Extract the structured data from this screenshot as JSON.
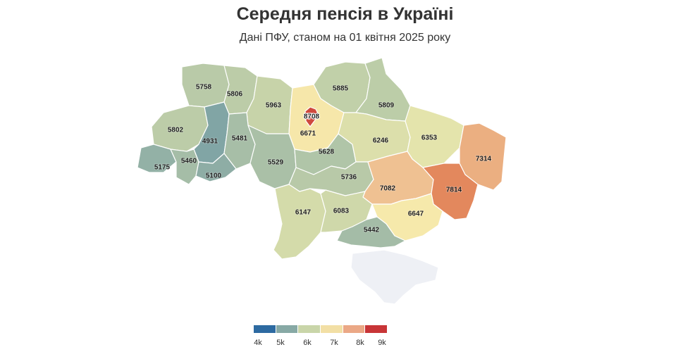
{
  "title": "Середня пенсія в Україні",
  "subtitle": "Дані ПФУ, станом на 01 квітня 2025 року",
  "map": {
    "regions": [
      {
        "id": "volyn",
        "value": 5758
      },
      {
        "id": "rivne",
        "value": 5806
      },
      {
        "id": "zhytomyr",
        "value": 5963
      },
      {
        "id": "kyiv-oblast",
        "value": 6671
      },
      {
        "id": "kyiv-city",
        "value": 8708
      },
      {
        "id": "chernihiv",
        "value": 5885
      },
      {
        "id": "sumy",
        "value": 5809
      },
      {
        "id": "lviv",
        "value": 5802
      },
      {
        "id": "ternopil",
        "value": 4931
      },
      {
        "id": "khmelnytskyi",
        "value": 5481
      },
      {
        "id": "zakarpattia",
        "value": 5175
      },
      {
        "id": "ivano-frankivsk",
        "value": 5460
      },
      {
        "id": "chernivtsi",
        "value": 5100
      },
      {
        "id": "vinnytsia",
        "value": 5529
      },
      {
        "id": "cherkasy",
        "value": 5628
      },
      {
        "id": "poltava",
        "value": 6246
      },
      {
        "id": "kharkiv",
        "value": 6353
      },
      {
        "id": "luhansk",
        "value": 7314
      },
      {
        "id": "kirovohrad",
        "value": 5736
      },
      {
        "id": "dnipropetrovsk",
        "value": 7082
      },
      {
        "id": "donetsk",
        "value": 7814
      },
      {
        "id": "odesa",
        "value": 6147
      },
      {
        "id": "mykolaiv",
        "value": 6083
      },
      {
        "id": "zaporizhzhia",
        "value": 6647
      },
      {
        "id": "kherson",
        "value": 5442
      },
      {
        "id": "crimea",
        "value": null
      }
    ],
    "no_data_color": "#eef0f5"
  },
  "legend": {
    "ticks": [
      "4k",
      "5k",
      "6k",
      "7k",
      "8k",
      "9k"
    ],
    "tick_values": [
      4000,
      5000,
      6000,
      7000,
      8000,
      9000
    ],
    "color_stops": [
      {
        "value": 4000,
        "color": "#2d6aa1"
      },
      {
        "value": 5000,
        "color": "#87a9a5"
      },
      {
        "value": 6000,
        "color": "#c9d5a9"
      },
      {
        "value": 6600,
        "color": "#f7eeae"
      },
      {
        "value": 7000,
        "color": "#f0c798"
      },
      {
        "value": 8000,
        "color": "#e07950"
      },
      {
        "value": 9000,
        "color": "#c83537"
      }
    ],
    "steps": [
      "#2d6aa1",
      "#87a9a5",
      "#c9d5a9",
      "#f2dfa5",
      "#eba886",
      "#c83537"
    ]
  }
}
